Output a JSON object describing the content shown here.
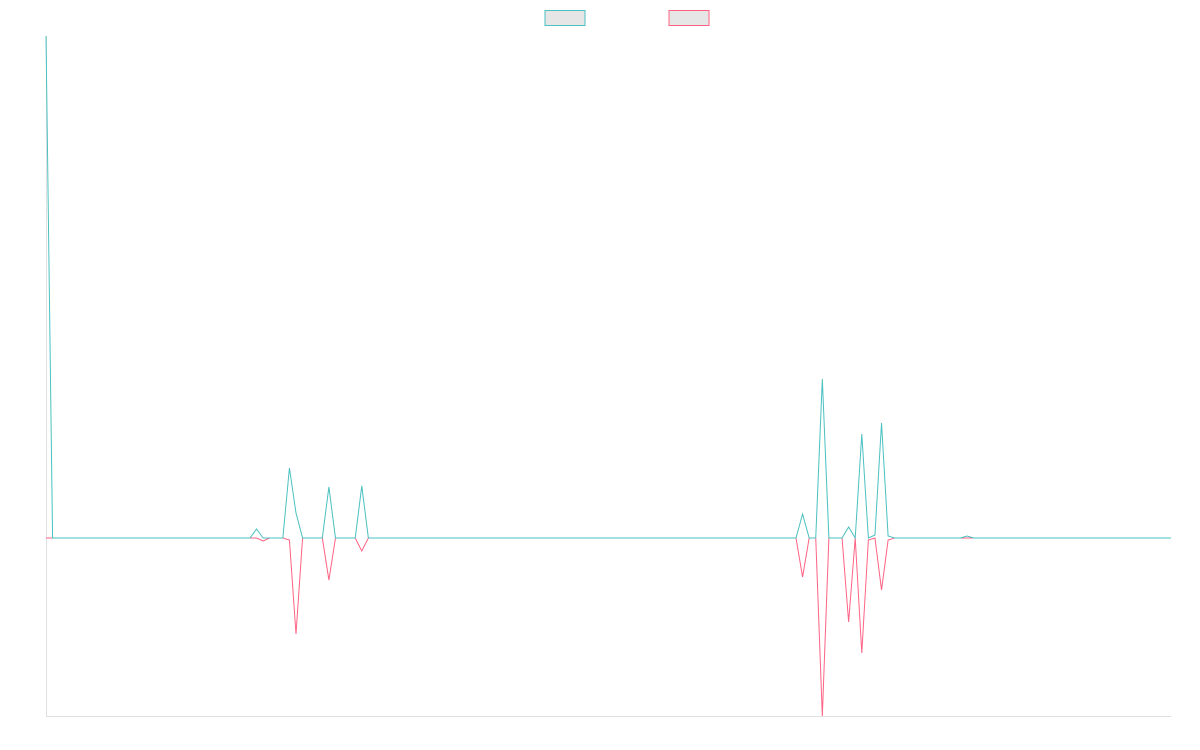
{
  "chart_data": {
    "type": "line",
    "ylim": [
      -178,
      502
    ],
    "series": [
      {
        "color": "#4bc0c0",
        "values": [
          502,
          0,
          0,
          0,
          0,
          0,
          0,
          0,
          0,
          0,
          0,
          0,
          0,
          0,
          0,
          0,
          0,
          0,
          0,
          0,
          0,
          0,
          0,
          0,
          0,
          0,
          0,
          0,
          0,
          0,
          0,
          0,
          9,
          0,
          0,
          0,
          0,
          70,
          25,
          0,
          0,
          0,
          0,
          51,
          0,
          0,
          0,
          0,
          52,
          0,
          0,
          0,
          0,
          0,
          0,
          0,
          0,
          0,
          0,
          0,
          0,
          0,
          0,
          0,
          0,
          0,
          0,
          0,
          0,
          0,
          0,
          0,
          0,
          0,
          0,
          0,
          0,
          0,
          0,
          0,
          0,
          0,
          0,
          0,
          0,
          0,
          0,
          0,
          0,
          0,
          0,
          0,
          0,
          0,
          0,
          0,
          0,
          0,
          0,
          0,
          0,
          0,
          0,
          0,
          0,
          0,
          0,
          0,
          0,
          0,
          0,
          0,
          0,
          0,
          0,
          24,
          0,
          0,
          159,
          0,
          0,
          0,
          11,
          0,
          104,
          0,
          3,
          115,
          2,
          0,
          0,
          0,
          0,
          0,
          0,
          0,
          0,
          0,
          0,
          0,
          2,
          0,
          0,
          0,
          0,
          0,
          0,
          0,
          0,
          0,
          0,
          0,
          0,
          0,
          0,
          0,
          0,
          0,
          0,
          0,
          0,
          0,
          0,
          0,
          0,
          0,
          0,
          0,
          0,
          0,
          0,
          0
        ]
      },
      {
        "color": "#ff6384",
        "values": [
          0,
          0,
          0,
          0,
          0,
          0,
          0,
          0,
          0,
          0,
          0,
          0,
          0,
          0,
          0,
          0,
          0,
          0,
          0,
          0,
          0,
          0,
          0,
          0,
          0,
          0,
          0,
          0,
          0,
          0,
          0,
          0,
          0,
          -3,
          0,
          0,
          0,
          -2,
          -96,
          0,
          0,
          0,
          0,
          -42,
          0,
          0,
          0,
          0,
          -13,
          0,
          0,
          0,
          0,
          0,
          0,
          0,
          0,
          0,
          0,
          0,
          0,
          0,
          0,
          0,
          0,
          0,
          0,
          0,
          0,
          0,
          0,
          0,
          0,
          0,
          0,
          0,
          0,
          0,
          0,
          0,
          0,
          0,
          0,
          0,
          0,
          0,
          0,
          0,
          0,
          0,
          0,
          0,
          0,
          0,
          0,
          0,
          0,
          0,
          0,
          0,
          0,
          0,
          0,
          0,
          0,
          0,
          0,
          0,
          0,
          0,
          0,
          0,
          0,
          0,
          0,
          -39,
          0,
          0,
          -178,
          0,
          0,
          0,
          -84,
          0,
          -115,
          -2,
          0,
          -52,
          -2,
          0,
          0,
          0,
          0,
          0,
          0,
          0,
          0,
          0,
          0,
          0,
          0,
          0,
          0,
          0,
          0,
          0,
          0,
          0,
          0,
          0,
          0,
          0,
          0,
          0,
          0,
          0,
          0,
          0,
          0,
          0,
          0,
          0,
          0,
          0,
          0,
          0,
          0,
          0,
          0,
          0,
          0,
          0
        ]
      }
    ]
  }
}
